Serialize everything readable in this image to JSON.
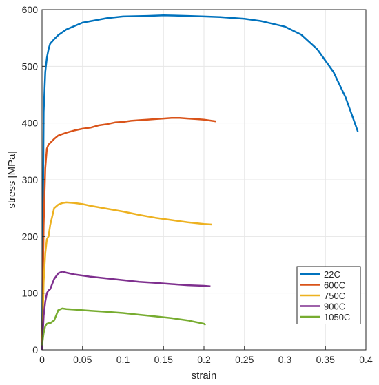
{
  "chart_data": {
    "type": "line",
    "xlabel": "strain",
    "ylabel": "stress [MPa]",
    "xlim": [
      0,
      0.4
    ],
    "ylim": [
      0,
      600
    ],
    "x_ticks": [
      0,
      0.05,
      0.1,
      0.15,
      0.2,
      0.25,
      0.3,
      0.35,
      0.4
    ],
    "x_tick_labels": [
      "0",
      "0.05",
      "0.1",
      "0.15",
      "0.2",
      "0.25",
      "0.3",
      "0.35",
      "0.4"
    ],
    "y_ticks": [
      0,
      100,
      200,
      300,
      400,
      500,
      600
    ],
    "y_tick_labels": [
      "0",
      "100",
      "200",
      "300",
      "400",
      "500",
      "600"
    ],
    "grid": true,
    "legend_position": "bottom-right",
    "series": [
      {
        "name": "22C",
        "color": "#0072BD",
        "x": [
          0,
          0.002,
          0.004,
          0.006,
          0.008,
          0.01,
          0.012,
          0.015,
          0.02,
          0.03,
          0.05,
          0.08,
          0.1,
          0.13,
          0.15,
          0.18,
          0.2,
          0.22,
          0.25,
          0.27,
          0.3,
          0.32,
          0.34,
          0.36,
          0.375,
          0.385,
          0.39
        ],
        "y": [
          0,
          420,
          490,
          515,
          530,
          540,
          543,
          548,
          555,
          565,
          577,
          585,
          588,
          589,
          590,
          589,
          588,
          587,
          584,
          580,
          570,
          556,
          530,
          490,
          445,
          405,
          385
        ]
      },
      {
        "name": "600C",
        "color": "#D95319",
        "x": [
          0,
          0.002,
          0.004,
          0.006,
          0.008,
          0.01,
          0.015,
          0.02,
          0.03,
          0.04,
          0.05,
          0.06,
          0.07,
          0.08,
          0.09,
          0.1,
          0.11,
          0.12,
          0.13,
          0.14,
          0.15,
          0.16,
          0.17,
          0.18,
          0.19,
          0.2,
          0.215
        ],
        "y": [
          0,
          220,
          320,
          355,
          362,
          365,
          372,
          378,
          383,
          387,
          390,
          392,
          396,
          398,
          401,
          402,
          404,
          405,
          406,
          407,
          408,
          409,
          409,
          408,
          407,
          406,
          403
        ]
      },
      {
        "name": "750C",
        "color": "#EDB120",
        "x": [
          0,
          0.002,
          0.004,
          0.006,
          0.008,
          0.01,
          0.015,
          0.02,
          0.025,
          0.03,
          0.04,
          0.05,
          0.06,
          0.08,
          0.1,
          0.12,
          0.14,
          0.16,
          0.18,
          0.2,
          0.21
        ],
        "y": [
          0,
          120,
          170,
          195,
          200,
          220,
          250,
          256,
          259,
          260,
          259,
          257,
          254,
          249,
          244,
          238,
          233,
          229,
          225,
          222,
          221
        ]
      },
      {
        "name": "900C",
        "color": "#7E2F8E",
        "x": [
          0,
          0.002,
          0.004,
          0.006,
          0.008,
          0.01,
          0.015,
          0.02,
          0.025,
          0.03,
          0.04,
          0.05,
          0.06,
          0.08,
          0.1,
          0.12,
          0.14,
          0.16,
          0.18,
          0.2,
          0.208
        ],
        "y": [
          0,
          60,
          85,
          100,
          105,
          107,
          125,
          135,
          138,
          136,
          133,
          131,
          129,
          126,
          123,
          120,
          118,
          116,
          114,
          113,
          112
        ]
      },
      {
        "name": "1050C",
        "color": "#77AC30",
        "x": [
          0,
          0.002,
          0.004,
          0.006,
          0.008,
          0.01,
          0.015,
          0.02,
          0.025,
          0.03,
          0.04,
          0.05,
          0.06,
          0.08,
          0.1,
          0.12,
          0.14,
          0.16,
          0.18,
          0.2,
          0.202
        ],
        "y": [
          8,
          30,
          42,
          46,
          47,
          47,
          52,
          70,
          73,
          72,
          71,
          70,
          69,
          67,
          65,
          62,
          59,
          56,
          52,
          46,
          44
        ]
      }
    ]
  }
}
